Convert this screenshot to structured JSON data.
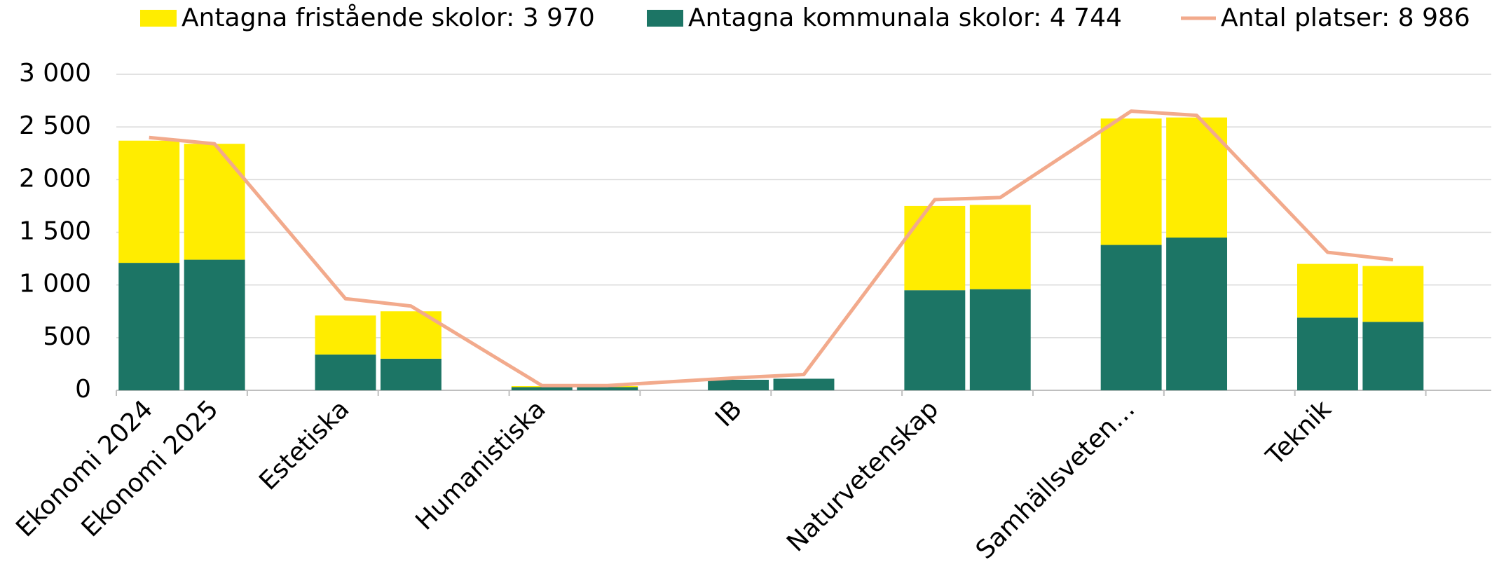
{
  "chart_data": {
    "type": "bar",
    "categories": [
      "Ekonomi 2024",
      "Ekonomi 2025",
      "Estetiska",
      null,
      "Humanistiska",
      null,
      "IB",
      null,
      "Naturvetenskap",
      null,
      "Samhällsveten…",
      null,
      "Teknik",
      null
    ],
    "series": [
      {
        "name": "Antagna kommunala skolor: 4 744",
        "color": "#1C7565",
        "values": [
          1210,
          1240,
          340,
          300,
          30,
          30,
          100,
          110,
          950,
          960,
          1380,
          1450,
          690,
          650
        ]
      },
      {
        "name": "Antagna fristående skolor: 3 970",
        "color": "#FFED00",
        "values": [
          1160,
          1100,
          370,
          450,
          10,
          10,
          0,
          0,
          800,
          800,
          1200,
          1140,
          510,
          530
        ]
      },
      {
        "name": "Antal platser: 8 986",
        "color": "#F2AA8C",
        "type": "line",
        "values": [
          2400,
          2340,
          870,
          800,
          45,
          45,
          120,
          150,
          1810,
          1830,
          2650,
          2610,
          1310,
          1240
        ]
      }
    ],
    "ylim": [
      0,
      3000
    ],
    "yticks": [
      0,
      500,
      {
        "value": 1000,
        "label": "1 000"
      },
      {
        "value": 1500,
        "label": "1 500"
      },
      {
        "value": 2000,
        "label": "2 000"
      },
      {
        "value": 2500,
        "label": "2 500"
      },
      {
        "value": 3000,
        "label": "3 000"
      }
    ],
    "grid": true
  }
}
